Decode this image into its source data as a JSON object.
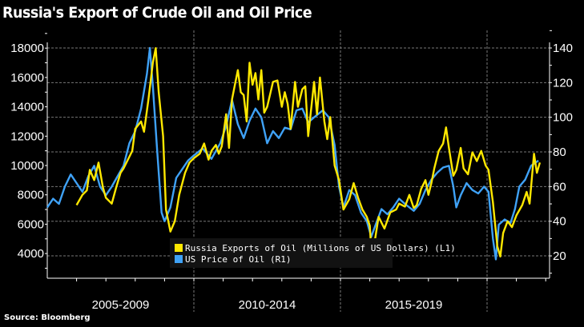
{
  "chart_data": {
    "type": "line",
    "title": "Russia's Export of Crude Oil and Oil Price",
    "source": "Source: Bloomberg",
    "x_range": [
      2005,
      2022.1
    ],
    "x_tick_labels": [
      "2005-2009",
      "2010-2014",
      "2015-2019"
    ],
    "left_axis": {
      "ylim": [
        2500,
        19500
      ],
      "ticks": [
        4000,
        6000,
        8000,
        10000,
        12000,
        14000,
        16000,
        18000
      ],
      "labels": [
        "4000",
        "6000",
        "8000",
        "10000",
        "12000",
        "14000",
        "16000",
        "18000"
      ]
    },
    "right_axis": {
      "ylim": [
        5,
        150
      ],
      "ticks": [
        20,
        40,
        60,
        80,
        100,
        120,
        140
      ],
      "labels": [
        "20",
        "40",
        "60",
        "80",
        "100",
        "120",
        "140"
      ]
    },
    "grid": true,
    "legend_position": "bottom-center",
    "series": [
      {
        "name": "Russia Exports of Oil (Millions of US Dollars) (L1)",
        "axis": "left",
        "color": "#FFE800",
        "x": [
          2006.0,
          2006.2,
          2006.35,
          2006.45,
          2006.6,
          2006.75,
          2006.9,
          2007.0,
          2007.2,
          2007.35,
          2007.5,
          2007.6,
          2007.8,
          2007.9,
          2008.0,
          2008.2,
          2008.3,
          2008.45,
          2008.6,
          2008.7,
          2008.8,
          2008.95,
          2009.05,
          2009.2,
          2009.35,
          2009.5,
          2009.7,
          2009.85,
          2010.0,
          2010.2,
          2010.35,
          2010.5,
          2010.6,
          2010.75,
          2010.85,
          2010.95,
          2011.1,
          2011.2,
          2011.3,
          2011.4,
          2011.5,
          2011.6,
          2011.7,
          2011.8,
          2011.9,
          2012.0,
          2012.1,
          2012.2,
          2012.3,
          2012.4,
          2012.5,
          2012.7,
          2012.85,
          2013.0,
          2013.1,
          2013.2,
          2013.3,
          2013.45,
          2013.55,
          2013.7,
          2013.8,
          2013.9,
          2014.1,
          2014.2,
          2014.3,
          2014.45,
          2014.55,
          2014.65,
          2014.8,
          2014.95,
          2015.1,
          2015.3,
          2015.45,
          2015.6,
          2015.75,
          2015.9,
          2016.0,
          2016.05,
          2016.15,
          2016.3,
          2016.5,
          2016.7,
          2016.9,
          2017.0,
          2017.2,
          2017.35,
          2017.5,
          2017.6,
          2017.75,
          2017.9,
          2018.0,
          2018.1,
          2018.2,
          2018.35,
          2018.5,
          2018.6,
          2018.7,
          2018.85,
          2018.95,
          2019.1,
          2019.2,
          2019.35,
          2019.5,
          2019.65,
          2019.8,
          2019.95,
          2020.05,
          2020.2,
          2020.35,
          2020.45,
          2020.55,
          2020.7,
          2020.85,
          2021.0,
          2021.2,
          2021.35,
          2021.45,
          2021.6,
          2021.7,
          2021.8
        ],
        "values": [
          7300,
          8000,
          8300,
          9700,
          9000,
          10200,
          8500,
          7800,
          7400,
          8500,
          9500,
          9800,
          10600,
          11000,
          12500,
          13000,
          12300,
          14500,
          17000,
          18000,
          15000,
          12000,
          7000,
          5500,
          6200,
          8000,
          9500,
          10200,
          10500,
          10800,
          11500,
          10400,
          11000,
          11400,
          10800,
          11300,
          13500,
          11200,
          14500,
          15500,
          16500,
          15000,
          14800,
          13000,
          17000,
          15500,
          16300,
          14500,
          16500,
          13600,
          14000,
          15700,
          15800,
          14000,
          15000,
          14200,
          12500,
          15700,
          14000,
          15200,
          15400,
          12000,
          15700,
          13500,
          16000,
          13000,
          11800,
          13300,
          10000,
          9000,
          7000,
          7700,
          8800,
          7800,
          7000,
          6500,
          5900,
          4300,
          4600,
          6500,
          5700,
          6800,
          7000,
          7400,
          7200,
          8000,
          7100,
          7300,
          8400,
          9000,
          8000,
          8800,
          9800,
          11000,
          11500,
          12600,
          11200,
          9300,
          9700,
          11200,
          9800,
          9400,
          10900,
          10300,
          11000,
          10000,
          9700,
          7500,
          4500,
          3800,
          5400,
          6200,
          5800,
          6600,
          7300,
          8200,
          7400,
          10800,
          9500,
          10200
        ]
      },
      {
        "name": "US Price of Oil (R1)",
        "axis": "right",
        "color": "#3FA2F7",
        "x": [
          2005.0,
          2005.2,
          2005.4,
          2005.6,
          2005.8,
          2006.0,
          2006.2,
          2006.4,
          2006.6,
          2006.8,
          2007.0,
          2007.2,
          2007.4,
          2007.6,
          2007.8,
          2008.0,
          2008.2,
          2008.4,
          2008.5,
          2008.6,
          2008.75,
          2008.9,
          2009.0,
          2009.2,
          2009.4,
          2009.6,
          2009.8,
          2010.0,
          2010.3,
          2010.6,
          2010.9,
          2011.1,
          2011.3,
          2011.5,
          2011.7,
          2011.9,
          2012.1,
          2012.3,
          2012.5,
          2012.7,
          2012.9,
          2013.1,
          2013.3,
          2013.5,
          2013.7,
          2013.9,
          2014.1,
          2014.4,
          2014.6,
          2014.8,
          2014.95,
          2015.1,
          2015.3,
          2015.5,
          2015.7,
          2015.9,
          2016.05,
          2016.2,
          2016.4,
          2016.6,
          2016.8,
          2017.0,
          2017.2,
          2017.5,
          2017.7,
          2017.9,
          2018.1,
          2018.3,
          2018.5,
          2018.7,
          2018.85,
          2018.95,
          2019.1,
          2019.3,
          2019.5,
          2019.7,
          2019.9,
          2020.05,
          2020.2,
          2020.3,
          2020.4,
          2020.6,
          2020.8,
          2020.95,
          2021.1,
          2021.3,
          2021.5,
          2021.75
        ],
        "values": [
          48,
          53,
          50,
          60,
          67,
          62,
          57,
          66,
          72,
          60,
          55,
          60,
          66,
          72,
          85,
          92,
          105,
          125,
          140,
          118,
          80,
          45,
          40,
          48,
          65,
          70,
          75,
          78,
          82,
          76,
          85,
          95,
          110,
          96,
          88,
          98,
          105,
          100,
          85,
          92,
          88,
          94,
          93,
          104,
          105,
          97,
          100,
          104,
          100,
          84,
          60,
          48,
          58,
          55,
          45,
          40,
          31,
          38,
          47,
          44,
          48,
          53,
          50,
          46,
          50,
          58,
          64,
          68,
          71,
          72,
          60,
          48,
          55,
          62,
          58,
          56,
          60,
          57,
          30,
          18,
          38,
          41,
          39,
          47,
          60,
          64,
          72,
          75
        ]
      }
    ]
  }
}
